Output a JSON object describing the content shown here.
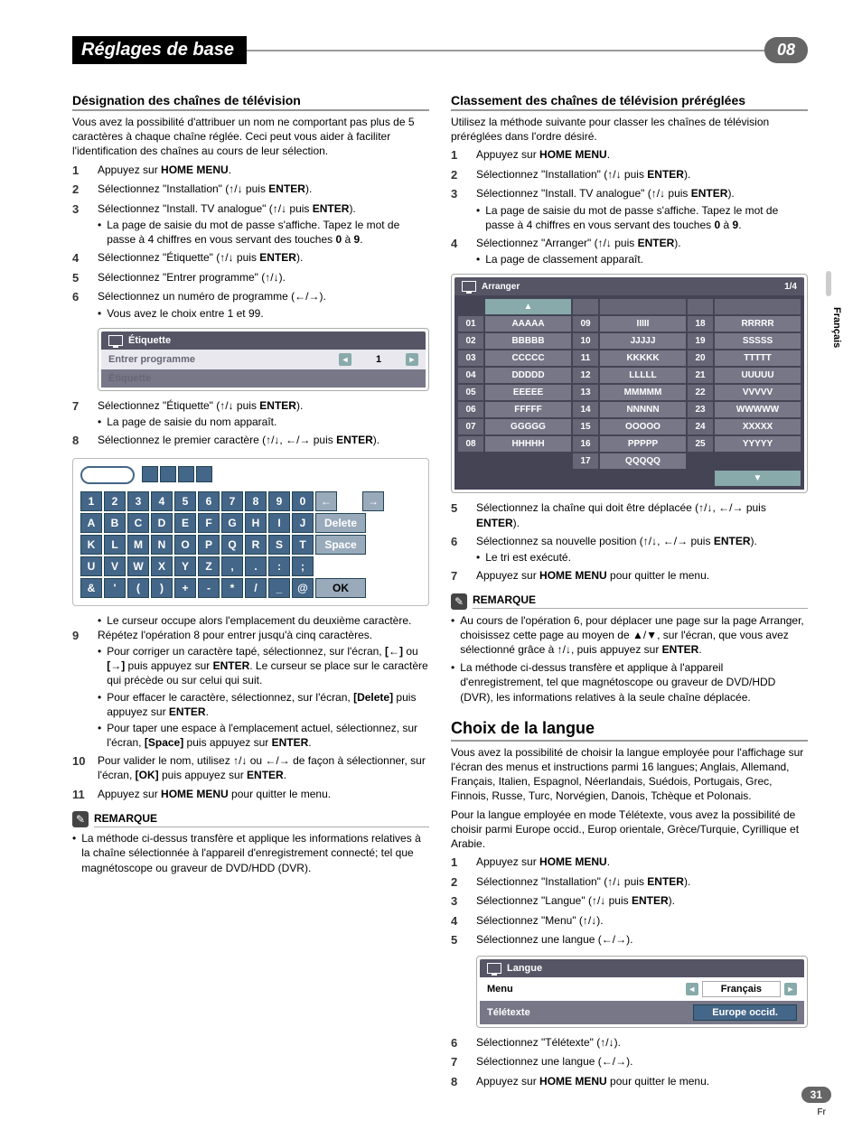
{
  "chapter": {
    "title": "Réglages de base",
    "number": "08"
  },
  "side": {
    "lang": "Français",
    "page": "31",
    "pglang": "Fr"
  },
  "left": {
    "s1_title": "Désignation des chaînes de télévision",
    "s1_intro": "Vous avez la possibilité d'attribuer un nom ne comportant pas plus de 5 caractères à chaque chaîne réglée. Ceci peut vous aider à faciliter l'identification des chaînes au cours de leur sélection.",
    "steps1": [
      "Appuyez sur <b>HOME MENU</b>.",
      "Sélectionnez \"Installation\" (↑/↓ puis <b>ENTER</b>).",
      "Sélectionnez \"Install. TV analogue\" (↑/↓ puis <b>ENTER</b>).",
      "Sélectionnez \"Étiquette\" (↑/↓ puis <b>ENTER</b>).",
      "Sélectionnez \"Entrer programme\" (↑/↓).",
      "Sélectionnez un numéro de programme (←/→)."
    ],
    "s1_sub3a": "La page de saisie du mot de passe s'affiche. Tapez le mot de passe à 4 chiffres en vous servant des touches <b>0</b> à <b>9</b>.",
    "s1_sub6a": "Vous avez le choix entre 1 et 99.",
    "etq": {
      "title": "Étiquette",
      "row1": "Entrer programme",
      "val": "1",
      "row2": "Étiquette"
    },
    "step7": "Sélectionnez \"Étiquette\" (↑/↓ puis <b>ENTER</b>).",
    "step7_sub": "La page de saisie du nom apparaît.",
    "step8": "Sélectionnez le premier caractère (↑/↓, ←/→ puis <b>ENTER</b>).",
    "chargrid": {
      "r1": [
        "1",
        "2",
        "3",
        "4",
        "5",
        "6",
        "7",
        "8",
        "9",
        "0",
        "←",
        "",
        "→"
      ],
      "r2": [
        "A",
        "B",
        "C",
        "D",
        "E",
        "F",
        "G",
        "H",
        "I",
        "J",
        "Delete"
      ],
      "r3": [
        "K",
        "L",
        "M",
        "N",
        "O",
        "P",
        "Q",
        "R",
        "S",
        "T",
        "Space"
      ],
      "r4": [
        "U",
        "V",
        "W",
        "X",
        "Y",
        "Z",
        ",",
        ".",
        ":",
        ";"
      ],
      "r5": [
        "&",
        "'",
        "(",
        ")",
        "+",
        "-",
        "*",
        "/",
        "_",
        "@",
        "OK"
      ]
    },
    "after_grid_bullet": "Le curseur occupe alors l'emplacement du deuxième caractère.",
    "step9": "Répétez l'opération 8 pour entrer jusqu'à cinq caractères.",
    "step9_b1": "Pour corriger un caractère tapé, sélectionnez, sur l'écran, <b>[←]</b> ou <b>[→]</b> puis appuyez sur <b>ENTER</b>. Le curseur se place sur le caractère qui précède ou sur celui qui suit.",
    "step9_b2": "Pour effacer le caractère, sélectionnez, sur l'écran, <b>[Delete]</b> puis appuyez sur <b>ENTER</b>.",
    "step9_b3": "Pour taper une espace à l'emplacement actuel, sélectionnez, sur l'écran, <b>[Space]</b> puis appuyez sur <b>ENTER</b>.",
    "step10": "Pour valider le nom, utilisez ↑/↓ ou ←/→ de façon à sélectionner, sur l'écran, <b>[OK]</b> puis appuyez sur <b>ENTER</b>.",
    "step11": "Appuyez sur <b>HOME MENU</b> pour quitter le menu.",
    "remark_label": "REMARQUE",
    "remark1": "La méthode ci-dessus transfère et applique les informations relatives à la chaîne sélectionnée à l'appareil d'enregistrement connecté; tel que magnétoscope ou graveur de DVD/HDD (DVR)."
  },
  "right": {
    "s2_title": "Classement des chaînes de télévision préréglées",
    "s2_intro": "Utilisez la méthode suivante pour classer les chaînes de télévision préréglées dans l'ordre désiré.",
    "steps2": [
      "Appuyez sur <b>HOME MENU</b>.",
      "Sélectionnez \"Installation\" (↑/↓ puis <b>ENTER</b>).",
      "Sélectionnez \"Install. TV analogue\" (↑/↓ puis <b>ENTER</b>).",
      "Sélectionnez \"Arranger\" (↑/↓ puis <b>ENTER</b>)."
    ],
    "s2_sub3": "La page de saisie du mot de passe s'affiche. Tapez le mot de passe à 4 chiffres en vous servant des touches <b>0</b> à <b>9</b>.",
    "s2_sub4": "La page de classement apparaît.",
    "arranger": {
      "title": "Arranger",
      "page": "1/4",
      "rows": [
        [
          "01",
          "AAAAA",
          "09",
          "IIIII",
          "18",
          "RRRRR"
        ],
        [
          "02",
          "BBBBB",
          "10",
          "JJJJJ",
          "19",
          "SSSSS"
        ],
        [
          "03",
          "CCCCC",
          "11",
          "KKKKK",
          "20",
          "TTTTT"
        ],
        [
          "04",
          "DDDDD",
          "12",
          "LLLLL",
          "21",
          "UUUUU"
        ],
        [
          "05",
          "EEEEE",
          "13",
          "MMMMM",
          "22",
          "VVVVV"
        ],
        [
          "06",
          "FFFFF",
          "14",
          "NNNNN",
          "23",
          "WWWWW"
        ],
        [
          "07",
          "GGGGG",
          "15",
          "OOOOO",
          "24",
          "XXXXX"
        ],
        [
          "08",
          "HHHHH",
          "16",
          "PPPPP",
          "25",
          "YYYYY"
        ],
        [
          "",
          "",
          "17",
          "QQQQQ",
          "",
          ""
        ]
      ]
    },
    "step5": "Sélectionnez la chaîne qui doit être déplacée (↑/↓, ←/→ puis <b>ENTER</b>).",
    "step6": "Sélectionnez sa nouvelle position (↑/↓, ←/→ puis <b>ENTER</b>).",
    "step6_sub": "Le tri est exécuté.",
    "step7": "Appuyez sur <b>HOME MENU</b> pour quitter le menu.",
    "remark_label": "REMARQUE",
    "remark1": "Au cours de l'opération 6, pour déplacer une page sur la page Arranger, choisissez cette page au moyen de ▲/▼, sur l'écran, que vous avez sélectionné grâce à ↑/↓, puis appuyez sur <b>ENTER</b>.",
    "remark2": "La méthode ci-dessus transfère et applique à l'appareil d'enregistrement, tel que magnétoscope ou graveur de DVD/HDD (DVR), les informations relatives à la seule chaîne déplacée.",
    "s3_title": "Choix de la langue",
    "s3_intro1": "Vous avez la possibilité de choisir la langue employée pour l'affichage sur l'écran des menus et instructions parmi 16 langues; Anglais, Allemand, Français, Italien, Espagnol, Néerlandais, Suédois, Portugais, Grec, Finnois, Russe, Turc, Norvégien, Danois, Tchèque et Polonais.",
    "s3_intro2": "Pour la langue employée en mode Télétexte, vous avez la possibilité de choisir parmi Europe occid., Europ orientale, Grèce/Turquie, Cyrillique et Arabie.",
    "steps3": [
      "Appuyez sur <b>HOME MENU</b>.",
      "Sélectionnez \"Installation\" (↑/↓ puis <b>ENTER</b>).",
      "Sélectionnez \"Langue\" (↑/↓ puis <b>ENTER</b>).",
      "Sélectionnez \"Menu\" (↑/↓).",
      "Sélectionnez une langue (←/→)."
    ],
    "langbox": {
      "title": "Langue",
      "row1": "Menu",
      "val1": "Français",
      "row2": "Télétexte",
      "val2": "Europe occid."
    },
    "step6b": "Sélectionnez \"Télétexte\" (↑/↓).",
    "step7b": "Sélectionnez une langue (←/→).",
    "step8b": "Appuyez sur <b>HOME MENU</b> pour quitter le menu."
  }
}
